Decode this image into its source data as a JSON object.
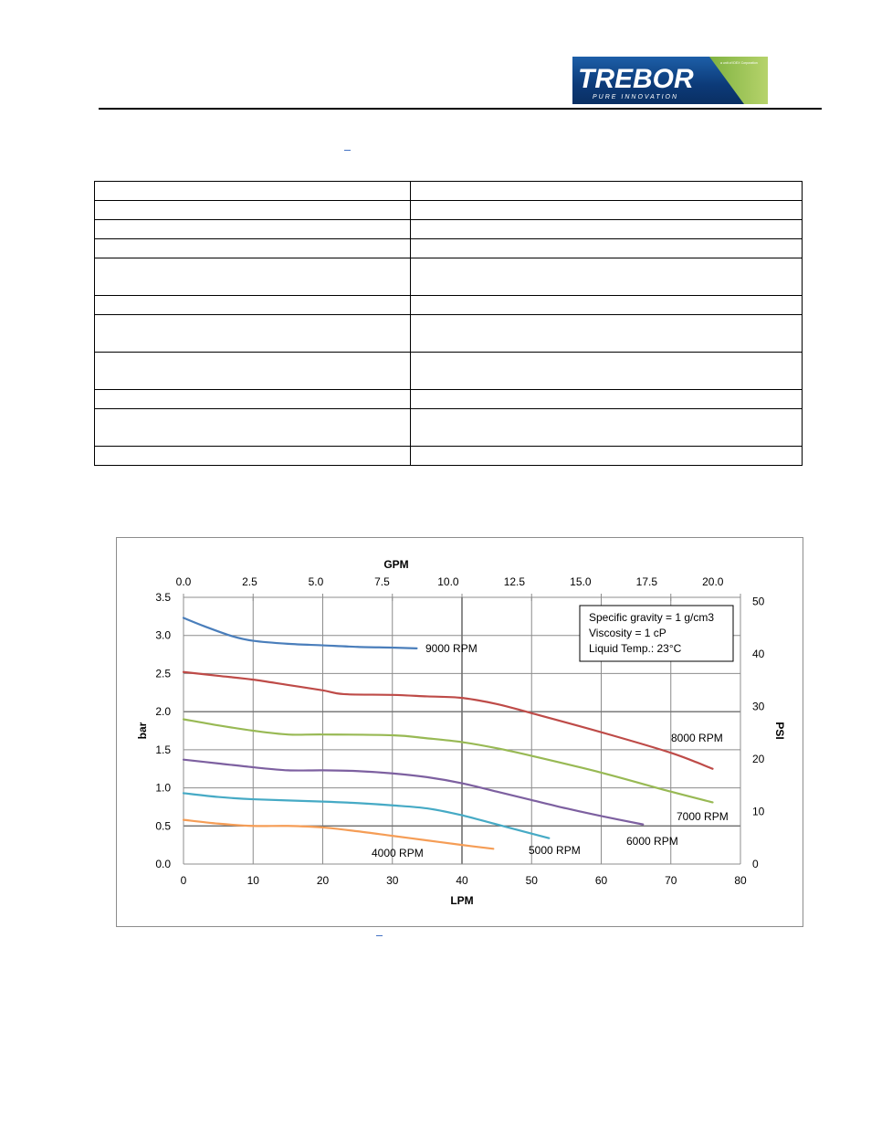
{
  "header": {
    "logo": {
      "brand": "TREBOR",
      "tagline": "PURE INNOVATION",
      "badge": "a unit of IDEX Corporation"
    }
  },
  "spec_table": {
    "rows": [
      {
        "label": "",
        "value": "",
        "tall": false
      },
      {
        "label": "",
        "value": "",
        "tall": false
      },
      {
        "label": "",
        "value": "",
        "tall": false
      },
      {
        "label": "",
        "value": "",
        "tall": false
      },
      {
        "label": "",
        "value": "",
        "tall": true
      },
      {
        "label": "",
        "value": "",
        "tall": false
      },
      {
        "label": "",
        "value": "",
        "tall": true
      },
      {
        "label": "",
        "value": "",
        "tall": true
      },
      {
        "label": "",
        "value": "",
        "tall": false
      },
      {
        "label": "",
        "value": "",
        "tall": true
      },
      {
        "label": "",
        "value": "",
        "tall": false
      }
    ]
  },
  "chart_data": {
    "type": "line",
    "title": "",
    "xlabel": "LPM",
    "x2label": "GPM",
    "ylabel": "bar",
    "y2label": "PSI",
    "xlim": [
      0,
      80
    ],
    "x2lim": [
      0,
      20
    ],
    "ylim": [
      0,
      3.5
    ],
    "y2lim": [
      0,
      50
    ],
    "x_ticks": [
      0,
      10,
      20,
      30,
      40,
      50,
      60,
      70,
      80
    ],
    "x2_ticks": [
      "0.0",
      "2.5",
      "5.0",
      "7.5",
      "10.0",
      "12.5",
      "15.0",
      "17.5",
      "20.0"
    ],
    "y_ticks": [
      "0.0",
      "0.5",
      "1.0",
      "1.5",
      "2.0",
      "2.5",
      "3.0",
      "3.5"
    ],
    "y2_ticks": [
      0,
      10,
      20,
      30,
      40,
      50
    ],
    "grid": true,
    "annotation": [
      "Specific gravity = 1 g/cm3",
      "Viscosity = 1 cP",
      "Liquid Temp.: 23°C"
    ],
    "series": [
      {
        "name": "9000 RPM",
        "color": "#4a7ebb",
        "x": [
          0,
          3,
          7,
          10,
          15,
          20,
          25,
          30,
          33.5
        ],
        "y": [
          3.23,
          3.12,
          2.99,
          2.93,
          2.89,
          2.87,
          2.85,
          2.84,
          2.83
        ]
      },
      {
        "name": "8000 RPM",
        "color": "#be4b48",
        "x": [
          0,
          5,
          10,
          15,
          20,
          23,
          30,
          35,
          40,
          45,
          50,
          60,
          70,
          76
        ],
        "y": [
          2.52,
          2.47,
          2.42,
          2.35,
          2.28,
          2.23,
          2.22,
          2.2,
          2.18,
          2.1,
          1.98,
          1.73,
          1.46,
          1.25
        ]
      },
      {
        "name": "7000 RPM",
        "color": "#98b954",
        "x": [
          0,
          5,
          10,
          15,
          20,
          30,
          35,
          40,
          45,
          50,
          60,
          70,
          76
        ],
        "y": [
          1.9,
          1.82,
          1.75,
          1.7,
          1.7,
          1.69,
          1.65,
          1.6,
          1.52,
          1.42,
          1.2,
          0.95,
          0.81
        ]
      },
      {
        "name": "6000 RPM",
        "color": "#7d60a0",
        "x": [
          0,
          5,
          10,
          15,
          20,
          25,
          30,
          35,
          40,
          45,
          50,
          55,
          60,
          66
        ],
        "y": [
          1.37,
          1.32,
          1.27,
          1.23,
          1.23,
          1.22,
          1.19,
          1.14,
          1.06,
          0.95,
          0.84,
          0.73,
          0.63,
          0.52
        ]
      },
      {
        "name": "5000 RPM",
        "color": "#46aac5",
        "x": [
          0,
          5,
          10,
          20,
          25,
          30,
          35,
          40,
          45,
          50,
          52.5
        ],
        "y": [
          0.93,
          0.88,
          0.85,
          0.82,
          0.8,
          0.77,
          0.73,
          0.64,
          0.52,
          0.4,
          0.34
        ]
      },
      {
        "name": "4000 RPM",
        "color": "#f59d56",
        "x": [
          0,
          5,
          10,
          15,
          20,
          25,
          30,
          35,
          40,
          44.5
        ],
        "y": [
          0.58,
          0.53,
          0.5,
          0.5,
          0.48,
          0.43,
          0.37,
          0.31,
          0.25,
          0.2
        ]
      }
    ]
  }
}
